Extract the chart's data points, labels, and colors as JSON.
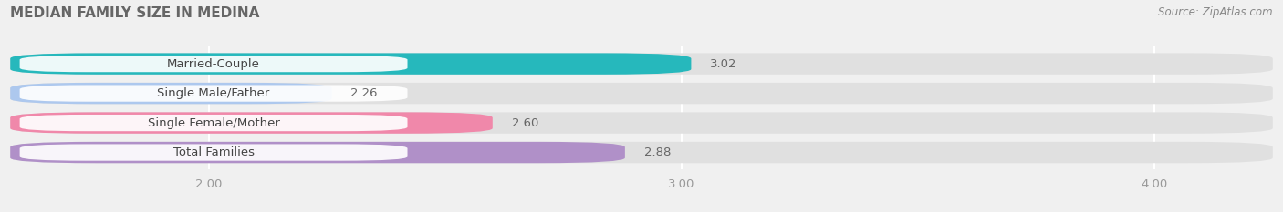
{
  "title": "MEDIAN FAMILY SIZE IN MEDINA",
  "source": "Source: ZipAtlas.com",
  "categories": [
    "Married-Couple",
    "Single Male/Father",
    "Single Female/Mother",
    "Total Families"
  ],
  "values": [
    3.02,
    2.26,
    2.6,
    2.88
  ],
  "bar_colors": [
    "#26b8bc",
    "#adc8ee",
    "#f088aa",
    "#b090c8"
  ],
  "bar_bg_color": "#e0e0e0",
  "xlim_left": 1.58,
  "xlim_right": 4.25,
  "xticks": [
    2.0,
    3.0,
    4.0
  ],
  "xtick_labels": [
    "2.00",
    "3.00",
    "4.00"
  ],
  "xstart": 1.58,
  "background_color": "#f0f0f0",
  "bar_height": 0.72,
  "label_fontsize": 9.5,
  "title_fontsize": 11,
  "value_fontsize": 9.5,
  "source_fontsize": 8.5,
  "title_color": "#666666",
  "source_color": "#888888",
  "value_color": "#666666",
  "label_color": "#444444",
  "tick_color": "#999999"
}
